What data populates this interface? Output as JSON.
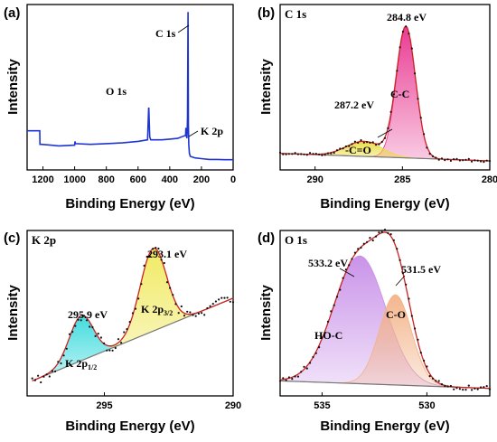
{
  "colors": {
    "survey": "#1f35d0",
    "envelope": "#cc2222",
    "points": "#111111",
    "baseline": "#777777",
    "c_cc": "#e8338f",
    "c_co": "#e9dc3a",
    "k_half": "#14d3d6",
    "k_3half": "#f0e95b",
    "o_hoc": "#c78ee8",
    "o_co": "#f3b287"
  },
  "chart_data": [
    {
      "panel": "(a)",
      "type": "line",
      "title": "",
      "xlabel": "Binding Energy (eV)",
      "ylabel": "Intensity",
      "xlim": [
        1300,
        0
      ],
      "xticks": [
        "1200",
        "1000",
        "800",
        "600",
        "400",
        "200",
        "0"
      ],
      "x": [
        1300,
        1220,
        1219,
        1210,
        1150,
        1100,
        1000,
        998,
        995,
        900,
        800,
        700,
        600,
        540,
        533,
        532,
        526,
        520,
        450,
        400,
        350,
        300,
        298,
        296,
        294,
        292,
        290,
        288,
        285,
        284.8,
        284,
        282,
        280,
        276,
        270,
        240,
        200,
        150,
        100,
        50,
        0
      ],
      "y": [
        0.21,
        0.21,
        0.12,
        0.12,
        0.115,
        0.11,
        0.115,
        0.14,
        0.125,
        0.12,
        0.125,
        0.13,
        0.14,
        0.15,
        0.36,
        0.36,
        0.17,
        0.15,
        0.15,
        0.155,
        0.16,
        0.18,
        0.23,
        0.17,
        0.22,
        0.16,
        0.2,
        0.3,
        0.9,
        1.0,
        0.85,
        0.25,
        0.12,
        0.06,
        0.04,
        0.03,
        0.025,
        0.02,
        0.02,
        0.018,
        0.018
      ],
      "annotations": [
        {
          "text": "C 1s",
          "x": 284.8
        },
        {
          "text": "O 1s",
          "x": 532
        },
        {
          "text": "K 2p",
          "x": 294
        }
      ]
    },
    {
      "panel": "(b)",
      "type": "area",
      "title": "C 1s",
      "xlabel": "Binding Energy (eV)",
      "ylabel": "Intensity",
      "xlim": [
        292,
        280
      ],
      "xticks": [
        "290",
        "285",
        "280"
      ],
      "series": [
        {
          "name": "C-C",
          "center": 284.8,
          "fwhm": 1.3,
          "height": 0.87
        },
        {
          "name": "-C=O",
          "center": 287.2,
          "fwhm": 2.4,
          "height": 0.1
        }
      ],
      "baseline": {
        "x": [
          292,
          280
        ],
        "y": [
          0.06,
          0.01
        ]
      },
      "annotations": [
        {
          "text": "284.8 eV",
          "x": 284.8
        },
        {
          "text": "287.2 eV",
          "x": 287.2
        }
      ]
    },
    {
      "panel": "(c)",
      "type": "area",
      "title": "K 2p",
      "xlabel": "Binding Energy (eV)",
      "ylabel": "Intensity",
      "xlim": [
        298,
        290
      ],
      "xticks": [
        "295",
        "290"
      ],
      "series": [
        {
          "name": "K 2p1/2",
          "label_main": "K 2p",
          "label_sub": "1/2",
          "center": 295.9,
          "fwhm": 1.1,
          "height": 0.3
        },
        {
          "name": "K 2p3/2",
          "label_main": "K 2p",
          "label_sub": "3/2",
          "center": 293.1,
          "fwhm": 1.2,
          "height": 0.55
        }
      ],
      "baseline": {
        "x": [
          297.8,
          290
        ],
        "y": [
          0.05,
          0.6
        ]
      },
      "annotations": [
        {
          "text": "295.9 eV",
          "x": 295.9
        },
        {
          "text": "293.1 eV",
          "x": 293.1
        }
      ]
    },
    {
      "panel": "(d)",
      "type": "area",
      "title": "O 1s",
      "xlabel": "Binding Energy (eV)",
      "ylabel": "Intensity",
      "xlim": [
        537,
        527
      ],
      "xticks": [
        "535",
        "530"
      ],
      "series": [
        {
          "name": "HO-C",
          "center": 533.2,
          "fwhm": 2.9,
          "height": 0.85
        },
        {
          "name": "C-O",
          "center": 531.5,
          "fwhm": 1.8,
          "height": 0.6
        }
      ],
      "baseline": {
        "x": [
          537,
          527
        ],
        "y": [
          0.05,
          0.0
        ]
      },
      "annotations": [
        {
          "text": "533.2 eV",
          "x": 533.2
        },
        {
          "text": "531.5 eV",
          "x": 531.5
        }
      ]
    }
  ]
}
